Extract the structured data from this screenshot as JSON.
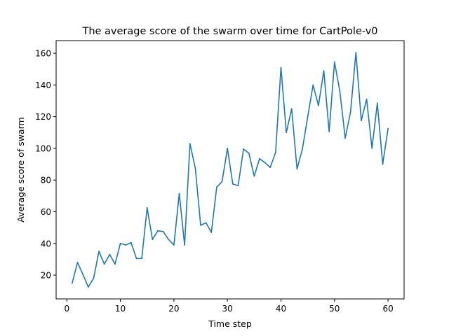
{
  "chart_data": {
    "type": "line",
    "title": "The average score of the swarm over time for CartPole-v0",
    "xlabel": "Time step",
    "ylabel": "Average score of swarm",
    "xlim": [
      -2,
      63
    ],
    "ylim": [
      5,
      168
    ],
    "xticks": [
      0,
      10,
      20,
      30,
      40,
      50,
      60
    ],
    "yticks": [
      20,
      40,
      60,
      80,
      100,
      120,
      140,
      160
    ],
    "grid": false,
    "series": [
      {
        "color": "#1f77b4",
        "x": [
          1,
          2,
          3,
          4,
          5,
          6,
          7,
          8,
          9,
          10,
          11,
          12,
          13,
          14,
          15,
          16,
          17,
          18,
          19,
          20,
          21,
          22,
          23,
          24,
          25,
          26,
          27,
          28,
          29,
          30,
          31,
          32,
          33,
          34,
          35,
          36,
          37,
          38,
          39,
          40,
          41,
          42,
          43,
          44,
          45,
          46,
          47,
          48,
          49,
          50,
          51,
          52,
          53,
          54,
          55,
          56,
          57,
          58,
          59,
          60
        ],
        "values": [
          15,
          28,
          20.5,
          12.5,
          18,
          35,
          27,
          33,
          27,
          40,
          39,
          40.5,
          30.5,
          30.5,
          62.5,
          42.5,
          48,
          47.5,
          42.5,
          39,
          71.5,
          39,
          103,
          87.5,
          51.5,
          53,
          47,
          75.5,
          79,
          100,
          77.5,
          76.5,
          99.5,
          97,
          82.5,
          93.5,
          91,
          88,
          97.5,
          151,
          110,
          125,
          87,
          99.5,
          120,
          140,
          127,
          149,
          110.5,
          154.5,
          136,
          106.5,
          123,
          160.5,
          117.5,
          131,
          100,
          128.5,
          90,
          112.5
        ]
      }
    ]
  }
}
